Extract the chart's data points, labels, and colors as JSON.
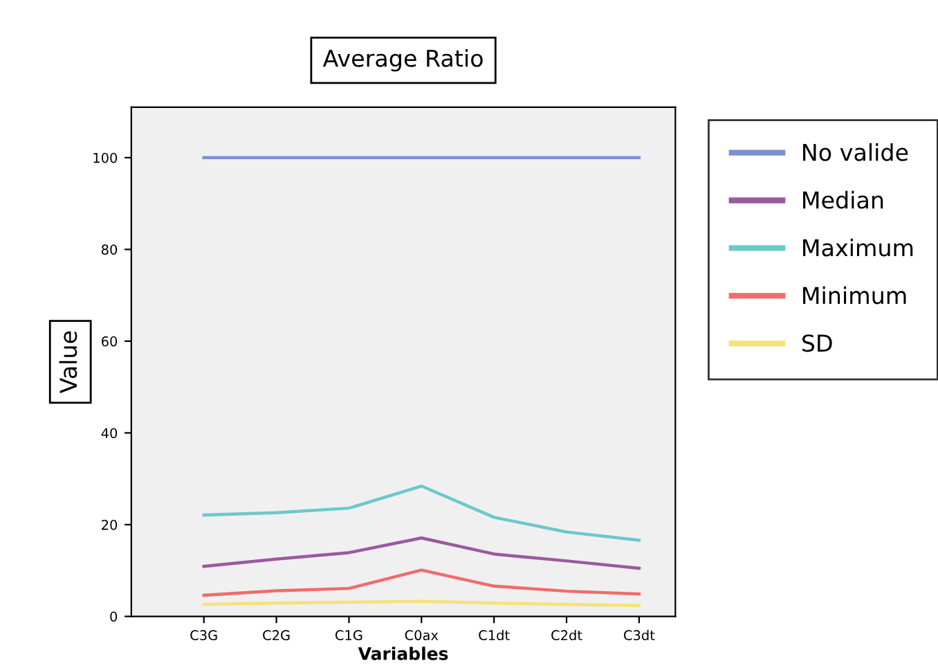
{
  "chart_data": {
    "type": "line",
    "title": "Average Ratio",
    "xlabel": "Variables",
    "ylabel": "Value",
    "categories": [
      "C3G",
      "C2G",
      "C1G",
      "C0ax",
      "C1dt",
      "C2dt",
      "C3dt"
    ],
    "series": [
      {
        "name": "No valide",
        "color": "#7b8fd6",
        "values": [
          100,
          100,
          100,
          100,
          100,
          100,
          100
        ]
      },
      {
        "name": "Median",
        "color": "#9b59a0",
        "values": [
          10.9,
          12.5,
          13.9,
          17.1,
          13.6,
          12.1,
          10.5
        ]
      },
      {
        "name": "Maximum",
        "color": "#6cc8cc",
        "values": [
          22.1,
          22.6,
          23.6,
          28.4,
          21.6,
          18.4,
          16.6
        ]
      },
      {
        "name": "Minimum",
        "color": "#f06b6b",
        "values": [
          4.6,
          5.6,
          6.1,
          10.1,
          6.6,
          5.5,
          4.9
        ]
      },
      {
        "name": "SD",
        "color": "#f5e27a",
        "values": [
          2.6,
          2.9,
          3.1,
          3.3,
          2.9,
          2.6,
          2.4
        ]
      }
    ],
    "ylim": [
      0,
      111
    ],
    "yticks": [
      0,
      20,
      40,
      60,
      80,
      100
    ],
    "grid": false,
    "legend": "right",
    "marker": "none",
    "line_style": "solid"
  }
}
